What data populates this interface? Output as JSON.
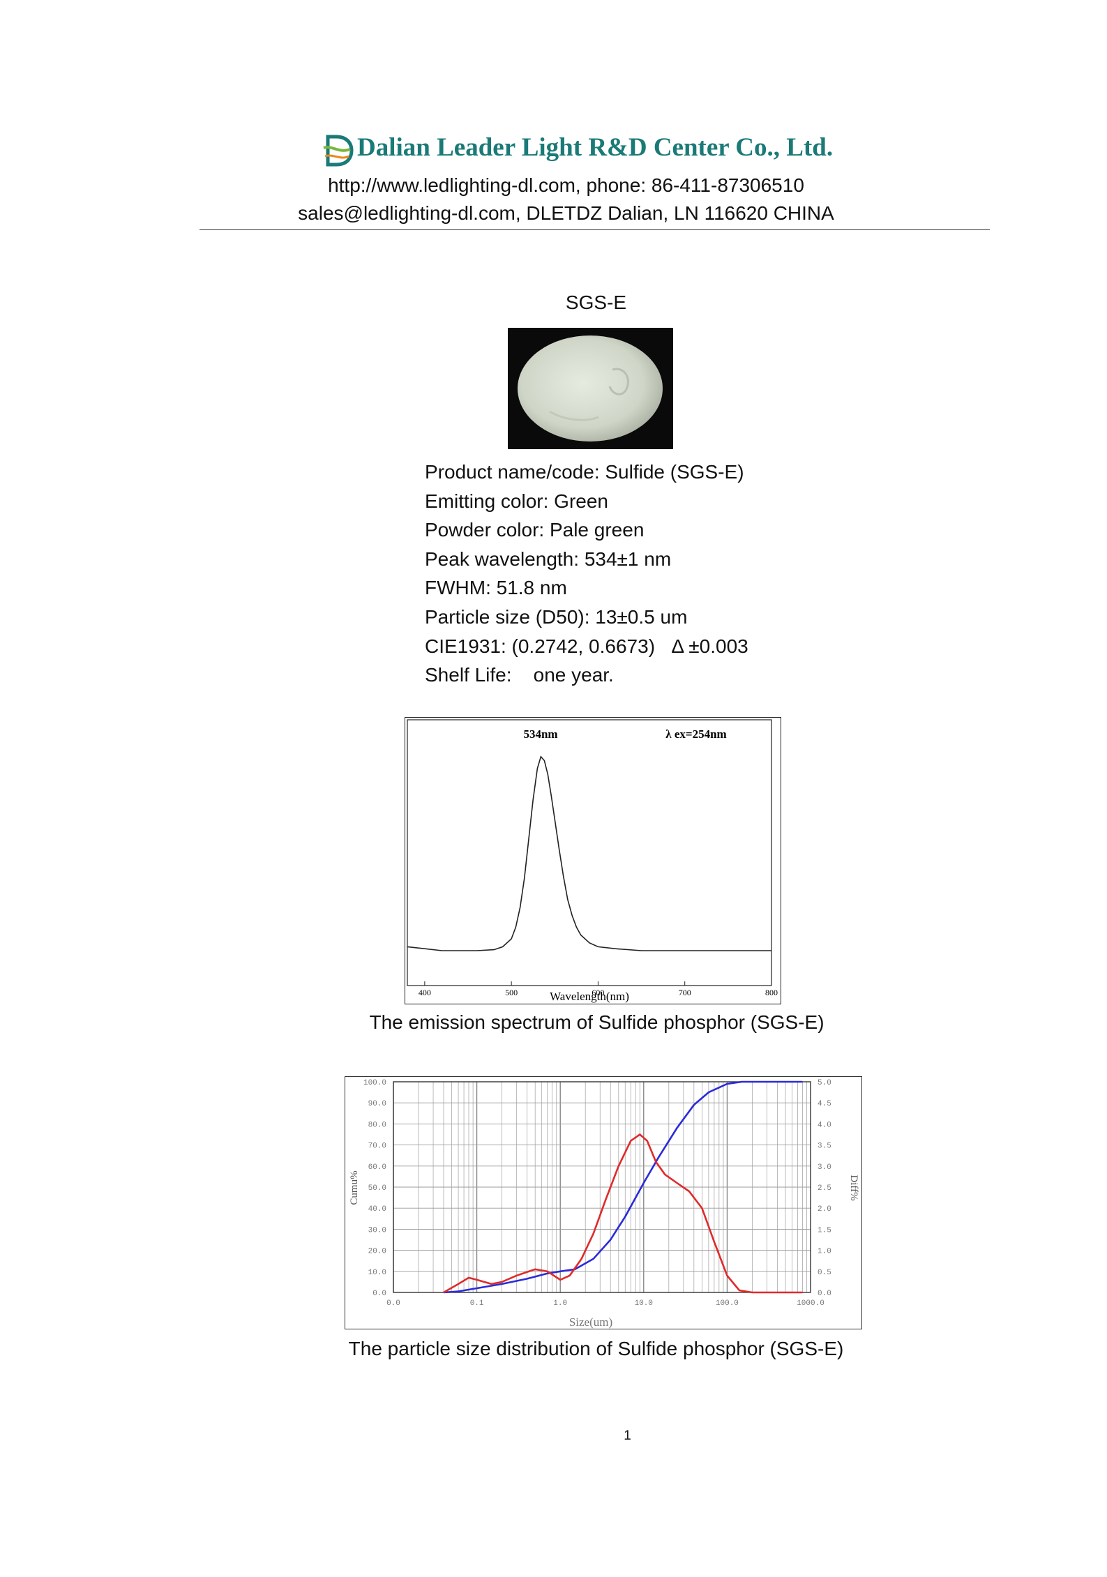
{
  "header": {
    "company": "Dalian Leader Light R&D Center Co., Ltd.",
    "line1": "http://www.ledlighting-dl.com, phone: 86-411-87306510",
    "line2": "sales@ledlighting-dl.com, DLETDZ Dalian, LN 116620 CHINA",
    "logo_icon": "dl-logo-icon",
    "brand_color": "#1a7a78"
  },
  "product_title": "SGS-E",
  "specs": [
    "Product name/code: Sulfide (SGS-E)",
    "Emitting color: Green",
    "Powder color: Pale green",
    "Peak wavelength: 534±1 nm",
    "FWHM: 51.8 nm",
    "Particle size (D50): 13±0.5 um",
    "CIE1931: (0.2742, 0.6673)   Δ ±0.003",
    "Shelf Life:    one year."
  ],
  "chart_data": [
    {
      "type": "line",
      "annotations": [
        "534nm",
        "λ ex=254nm"
      ],
      "xlabel": "Wavelength(nm)",
      "ylabel": "",
      "x_ticks": [
        "400",
        "500",
        "600",
        "700",
        "800"
      ],
      "xlim": [
        380,
        800
      ],
      "ylim": [
        0,
        1.05
      ],
      "grid": false,
      "series": [
        {
          "x": [
            380,
            400,
            420,
            440,
            460,
            480,
            490,
            500,
            505,
            510,
            515,
            520,
            525,
            530,
            534,
            538,
            542,
            546,
            550,
            555,
            560,
            565,
            570,
            575,
            580,
            590,
            600,
            620,
            650,
            700,
            750,
            800
          ],
          "values": [
            0.02,
            0.01,
            0.0,
            0.0,
            0.0,
            0.005,
            0.02,
            0.06,
            0.12,
            0.22,
            0.37,
            0.57,
            0.77,
            0.93,
            0.99,
            0.97,
            0.9,
            0.79,
            0.67,
            0.52,
            0.38,
            0.26,
            0.18,
            0.12,
            0.08,
            0.04,
            0.02,
            0.01,
            0.0,
            0.0,
            0.0,
            0.0
          ],
          "color": "#222222"
        }
      ],
      "caption": "The emission spectrum of Sulfide phosphor (SGS-E)"
    },
    {
      "type": "line",
      "x_scale": "log",
      "xlabel": "Size(um)",
      "ylabel_left": "Cumu%",
      "ylabel_right": "Diff%",
      "x_ticks": [
        "0.0",
        "0.1",
        "1.0",
        "10.0",
        "100.0",
        "1000.0"
      ],
      "y_left_ticks": [
        "0.0",
        "10.0",
        "20.0",
        "30.0",
        "40.0",
        "50.0",
        "60.0",
        "70.0",
        "80.0",
        "90.0",
        "100.0"
      ],
      "y_right_ticks": [
        "0.0",
        "0.5",
        "1.0",
        "1.5",
        "2.0",
        "2.5",
        "3.0",
        "3.5",
        "4.0",
        "4.5",
        "5.0"
      ],
      "xlim": [
        0.01,
        1000
      ],
      "ylim_left": [
        0,
        100
      ],
      "ylim_right": [
        0,
        5
      ],
      "grid": true,
      "series": [
        {
          "name": "",
          "axis": "left",
          "color": "#2b2bd9",
          "x": [
            0.04,
            0.06,
            0.1,
            0.2,
            0.4,
            0.7,
            1.0,
            1.5,
            2.5,
            4,
            6,
            10,
            15,
            25,
            40,
            60,
            100,
            150,
            200,
            300,
            500,
            800
          ],
          "values": [
            0,
            0.5,
            2,
            4,
            6.5,
            9,
            10,
            11,
            16,
            25,
            36,
            52,
            64,
            78,
            89,
            95,
            99,
            100,
            100,
            100,
            100,
            100
          ]
        },
        {
          "name": "",
          "axis": "right",
          "color": "#e02a2a",
          "x": [
            0.04,
            0.06,
            0.08,
            0.1,
            0.15,
            0.2,
            0.3,
            0.5,
            0.7,
            1.0,
            1.3,
            1.8,
            2.5,
            3.5,
            5,
            7,
            9,
            11,
            14,
            18,
            25,
            35,
            50,
            70,
            100,
            140,
            200,
            400,
            800
          ],
          "values": [
            0,
            0.2,
            0.35,
            0.3,
            0.2,
            0.25,
            0.4,
            0.55,
            0.5,
            0.3,
            0.4,
            0.8,
            1.4,
            2.2,
            3.0,
            3.6,
            3.75,
            3.6,
            3.1,
            2.8,
            2.6,
            2.4,
            2.0,
            1.2,
            0.4,
            0.05,
            0,
            0,
            0
          ]
        }
      ],
      "caption": "The particle size distribution of Sulfide phosphor (SGS-E)"
    }
  ],
  "page_number": "1"
}
